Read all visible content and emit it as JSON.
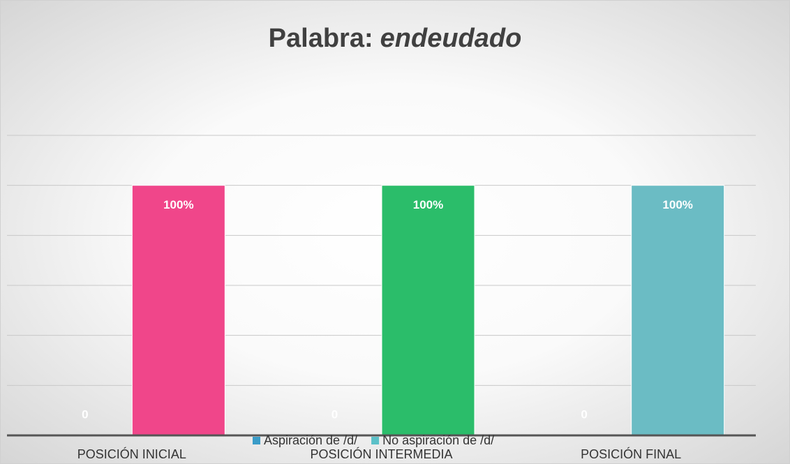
{
  "chart_data": {
    "type": "bar",
    "title": "Palabra:",
    "title_word": "endeudado",
    "categories": [
      "POSICIÓN INICIAL",
      "POSICIÓN INTERMEDIA",
      "POSICIÓN FINAL"
    ],
    "series": [
      {
        "name": "Aspiración de /d/",
        "color": "#3a9cc8",
        "values": [
          0,
          0,
          0
        ],
        "value_labels": [
          "0",
          "0",
          "0"
        ]
      },
      {
        "name": "No aspiración de /d/",
        "color": "#5bc0c8",
        "colors": [
          "#f0468a",
          "#2bbd6a",
          "#6bbcc4"
        ],
        "values": [
          100,
          100,
          100
        ],
        "value_labels": [
          "100%",
          "100%",
          "100%"
        ]
      }
    ],
    "ylim": [
      0,
      120
    ],
    "yticks": [
      0,
      20,
      40,
      60,
      80,
      100,
      120
    ],
    "grid": true,
    "legend": "bottom"
  }
}
